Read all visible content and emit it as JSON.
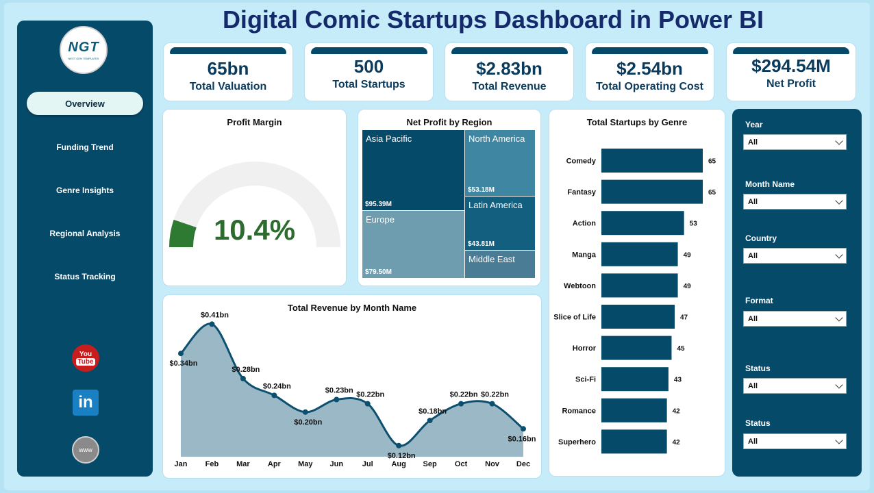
{
  "title": "Digital Comic Startups Dashboard in Power BI",
  "logo": {
    "text": "NGT",
    "subtext": "NEXT GEN TEMPLATES"
  },
  "nav": [
    "Overview",
    "Funding Trend",
    "Genre Insights",
    "Regional Analysis",
    "Status Tracking"
  ],
  "social": {
    "youtube_line1": "You",
    "youtube_line2": "Tube",
    "linkedin": "in",
    "web": "www"
  },
  "kpis": [
    {
      "value": "65bn",
      "label": "Total Valuation"
    },
    {
      "value": "500",
      "label": "Total Startups"
    },
    {
      "value": "$2.83bn",
      "label": "Total Revenue"
    },
    {
      "value": "$2.54bn",
      "label": "Total Operating Cost"
    },
    {
      "value": "$294.54M",
      "label": "Net Profit"
    }
  ],
  "gauge": {
    "title": "Profit Margin",
    "value_label": "10.4%",
    "value": 10.4,
    "max": 100,
    "fill_color": "#2e7a32",
    "track_color": "#f0f0f0"
  },
  "treemap": {
    "title": "Net Profit by Region",
    "regions": [
      {
        "name": "Asia Pacific",
        "value_label": "$95.39M",
        "color": "#064a6a"
      },
      {
        "name": "North America",
        "value_label": "$53.18M",
        "color": "#3f86a3"
      },
      {
        "name": "Latin America",
        "value_label": "$43.81M",
        "color": "#135f80"
      },
      {
        "name": "Europe",
        "value_label": "$79.50M",
        "color": "#6e9db0"
      },
      {
        "name": "Middle East",
        "value_label": "",
        "color": "#4a7d95"
      }
    ]
  },
  "chart_data": [
    {
      "type": "area",
      "title": "Total Revenue by Month Name",
      "categories": [
        "Jan",
        "Feb",
        "Mar",
        "Apr",
        "May",
        "Jun",
        "Jul",
        "Aug",
        "Sep",
        "Oct",
        "Nov",
        "Dec"
      ],
      "values": [
        0.34,
        0.41,
        0.28,
        0.24,
        0.2,
        0.23,
        0.22,
        0.12,
        0.18,
        0.22,
        0.22,
        0.16
      ],
      "value_labels": [
        "$0.34bn",
        "$0.41bn",
        "$0.28bn",
        "$0.24bn",
        "$0.20bn",
        "$0.23bn",
        "$0.22bn",
        "$0.12bn",
        "$0.18bn",
        "$0.22bn",
        "$0.22bn",
        "$0.16bn"
      ],
      "ylim": [
        0.1,
        0.42
      ],
      "line_color": "#0d4f6e",
      "fill_color": "#9ab8c6"
    },
    {
      "type": "bar",
      "orientation": "horizontal",
      "title": "Total Startups by Genre",
      "categories": [
        "Comedy",
        "Fantasy",
        "Action",
        "Manga",
        "Webtoon",
        "Slice of Life",
        "Horror",
        "Sci-Fi",
        "Romance",
        "Superhero"
      ],
      "values": [
        65,
        65,
        53,
        49,
        49,
        47,
        45,
        43,
        42,
        42
      ],
      "xlim": [
        0,
        65
      ],
      "bar_color": "#064a6a"
    }
  ],
  "slicers": [
    {
      "label": "Year",
      "value": "All"
    },
    {
      "label": "Month Name",
      "value": "All"
    },
    {
      "label": "Country",
      "value": "All"
    },
    {
      "label": "Format",
      "value": "All"
    },
    {
      "label": "Status",
      "value": "All"
    },
    {
      "label": "Status",
      "value": "All"
    }
  ]
}
